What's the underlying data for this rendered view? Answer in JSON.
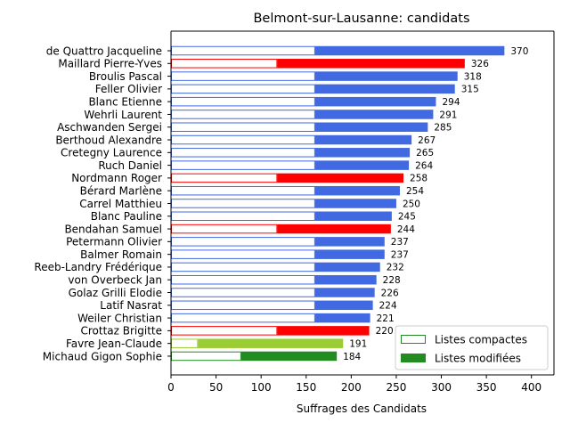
{
  "chart_data": {
    "type": "bar",
    "orientation": "horizontal",
    "title": "Belmont-sur-Lausanne: candidats",
    "xlabel": "Suffrages des Candidats",
    "ylabel": "",
    "xlim": [
      0,
      425
    ],
    "xticks": [
      0,
      50,
      100,
      150,
      200,
      250,
      300,
      350,
      400
    ],
    "grid": false,
    "legend": {
      "placement": "lower-right",
      "entries": [
        {
          "label": "Listes compactes",
          "style": "outline",
          "color": "#228B22"
        },
        {
          "label": "Listes modifiées",
          "style": "filled",
          "color": "#228B22"
        }
      ]
    },
    "colors": {
      "royalblue": "#4169E1",
      "red": "#FF0000",
      "yellowgreen": "#9ACD32",
      "forestgreen": "#228B22"
    },
    "series": [
      {
        "name": "Listes compactes",
        "values": [
          160,
          118,
          160,
          160,
          160,
          160,
          160,
          160,
          160,
          160,
          118,
          160,
          160,
          160,
          118,
          160,
          160,
          160,
          160,
          160,
          160,
          160,
          118,
          30,
          78
        ]
      },
      {
        "name": "Listes modifiées",
        "values": [
          210,
          208,
          158,
          155,
          134,
          131,
          125,
          107,
          105,
          104,
          140,
          94,
          90,
          85,
          126,
          77,
          77,
          72,
          68,
          66,
          64,
          61,
          102,
          161,
          106
        ]
      }
    ],
    "categories": [
      "de Quattro Jacqueline",
      "Maillard Pierre-Yves",
      "Broulis Pascal",
      "Feller Olivier",
      "Blanc Etienne",
      "Wehrli Laurent",
      "Aschwanden Sergei",
      "Berthoud Alexandre",
      "Cretegny Laurence",
      "Ruch Daniel",
      "Nordmann Roger",
      "Bérard Marlène",
      "Carrel Matthieu",
      "Blanc Pauline",
      "Bendahan Samuel",
      "Petermann Olivier",
      "Balmer Romain",
      "Reeb-Landry Frédérique",
      "von Overbeck Jan",
      "Golaz Grilli Elodie",
      "Latif Nasrat",
      "Weiler Christian",
      "Crottaz Brigitte",
      "Favre Jean-Claude",
      "Michaud Gigon Sophie"
    ],
    "totals": [
      370,
      326,
      318,
      315,
      294,
      291,
      285,
      267,
      265,
      264,
      258,
      254,
      250,
      245,
      244,
      237,
      237,
      232,
      228,
      226,
      224,
      221,
      220,
      191,
      184
    ],
    "bar_colors": [
      "royalblue",
      "red",
      "royalblue",
      "royalblue",
      "royalblue",
      "royalblue",
      "royalblue",
      "royalblue",
      "royalblue",
      "royalblue",
      "red",
      "royalblue",
      "royalblue",
      "royalblue",
      "red",
      "royalblue",
      "royalblue",
      "royalblue",
      "royalblue",
      "royalblue",
      "royalblue",
      "royalblue",
      "red",
      "yellowgreen",
      "forestgreen"
    ]
  }
}
